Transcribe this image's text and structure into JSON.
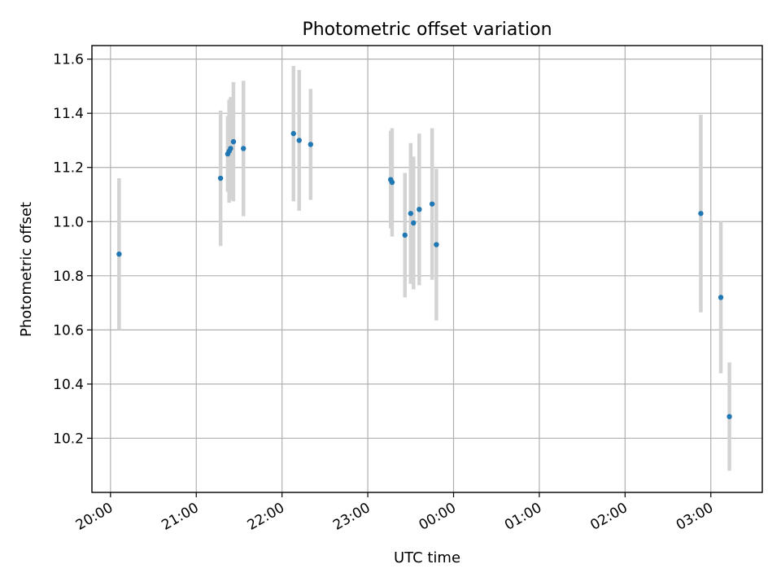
{
  "chart_data": {
    "type": "scatter",
    "title": "Photometric offset variation",
    "xlabel": "UTC time",
    "ylabel": "Photometric offset",
    "x_ticks": [
      "20:00",
      "21:00",
      "22:00",
      "23:00",
      "00:00",
      "01:00",
      "02:00",
      "03:00"
    ],
    "y_ticks": [
      "10.2",
      "10.4",
      "10.6",
      "10.8",
      "11.0",
      "11.2",
      "11.4",
      "11.6"
    ],
    "y_tick_values": [
      10.2,
      10.4,
      10.6,
      10.8,
      11.0,
      11.2,
      11.4,
      11.6
    ],
    "xlim": [
      "19:47",
      "03:36"
    ],
    "ylim": [
      10.0,
      11.65
    ],
    "grid": true,
    "series": [
      {
        "points": [
          {
            "t": "20:06",
            "y": 10.88,
            "err": 0.28
          },
          {
            "t": "21:17",
            "y": 11.16,
            "err": 0.25
          },
          {
            "t": "21:22",
            "y": 11.25,
            "err": 0.14
          },
          {
            "t": "21:23",
            "y": 11.26,
            "err": 0.19
          },
          {
            "t": "21:24",
            "y": 11.27,
            "err": 0.19
          },
          {
            "t": "21:26",
            "y": 11.295,
            "err": 0.22
          },
          {
            "t": "21:33",
            "y": 11.27,
            "err": 0.25
          },
          {
            "t": "22:08",
            "y": 11.325,
            "err": 0.25
          },
          {
            "t": "22:12",
            "y": 11.3,
            "err": 0.26
          },
          {
            "t": "22:20",
            "y": 11.285,
            "err": 0.205
          },
          {
            "t": "23:16",
            "y": 11.155,
            "err": 0.18
          },
          {
            "t": "23:17",
            "y": 11.145,
            "err": 0.2
          },
          {
            "t": "23:26",
            "y": 10.95,
            "err": 0.23
          },
          {
            "t": "23:30",
            "y": 11.03,
            "err": 0.26
          },
          {
            "t": "23:32",
            "y": 10.995,
            "err": 0.245
          },
          {
            "t": "23:36",
            "y": 11.045,
            "err": 0.28
          },
          {
            "t": "23:45",
            "y": 11.065,
            "err": 0.28
          },
          {
            "t": "23:48",
            "y": 10.915,
            "err": 0.28
          },
          {
            "t": "02:53",
            "y": 11.03,
            "err": 0.365
          },
          {
            "t": "03:07",
            "y": 10.72,
            "err": 0.28
          },
          {
            "t": "03:13",
            "y": 10.28,
            "err": 0.2
          }
        ]
      }
    ],
    "colors": {
      "point": "#1f77b4",
      "errorbar": "#d3d3d3",
      "grid": "#b0b0b0",
      "axes": "#000000"
    }
  }
}
